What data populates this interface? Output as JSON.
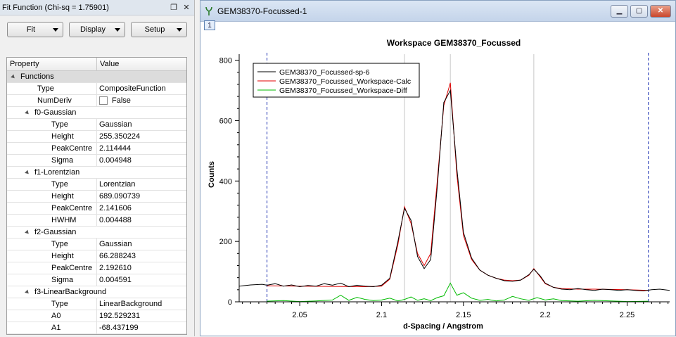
{
  "fit_panel": {
    "title": "Fit Function (Chi-sq = 1.75901)",
    "buttons": {
      "fit": "Fit",
      "display": "Display",
      "setup": "Setup"
    },
    "headers": {
      "property": "Property",
      "value": "Value"
    },
    "functions_label": "Functions",
    "rows": [
      {
        "indent": 1,
        "label": "Type",
        "value": "CompositeFunction"
      },
      {
        "indent": 1,
        "label": "NumDeriv",
        "value": "False",
        "checkbox": true
      },
      {
        "indent": 1,
        "label": "f0-Gaussian",
        "group": true
      },
      {
        "indent": 2,
        "label": "Type",
        "value": "Gaussian"
      },
      {
        "indent": 2,
        "label": "Height",
        "value": "255.350224"
      },
      {
        "indent": 2,
        "label": "PeakCentre",
        "value": "2.114444"
      },
      {
        "indent": 2,
        "label": "Sigma",
        "value": "0.004948"
      },
      {
        "indent": 1,
        "label": "f1-Lorentzian",
        "group": true
      },
      {
        "indent": 2,
        "label": "Type",
        "value": "Lorentzian"
      },
      {
        "indent": 2,
        "label": "Height",
        "value": "689.090739"
      },
      {
        "indent": 2,
        "label": "PeakCentre",
        "value": "2.141606"
      },
      {
        "indent": 2,
        "label": "HWHM",
        "value": "0.004488"
      },
      {
        "indent": 1,
        "label": "f2-Gaussian",
        "group": true
      },
      {
        "indent": 2,
        "label": "Type",
        "value": "Gaussian"
      },
      {
        "indent": 2,
        "label": "Height",
        "value": "66.288243"
      },
      {
        "indent": 2,
        "label": "PeakCentre",
        "value": "2.192610"
      },
      {
        "indent": 2,
        "label": "Sigma",
        "value": "0.004591"
      },
      {
        "indent": 1,
        "label": "f3-LinearBackground",
        "group": true
      },
      {
        "indent": 2,
        "label": "Type",
        "value": "LinearBackground"
      },
      {
        "indent": 2,
        "label": "A0",
        "value": "192.529231"
      },
      {
        "indent": 2,
        "label": "A1",
        "value": "-68.437199"
      }
    ]
  },
  "plot_window": {
    "title": "GEM38370-Focussed-1",
    "tab_number": "1"
  },
  "chart_data": {
    "type": "line",
    "title": "Workspace GEM38370_Focussed",
    "xlabel": "d-Spacing / Angstrom",
    "ylabel": "Counts",
    "xlim": [
      2.013,
      2.276
    ],
    "ylim": [
      0,
      820
    ],
    "xticks": [
      2.05,
      2.1,
      2.15,
      2.2,
      2.25
    ],
    "xtick_labels": [
      "2.05",
      "2.1",
      "2.15",
      "2.2",
      "2.25"
    ],
    "yticks": [
      0,
      200,
      400,
      600,
      800
    ],
    "ytick_labels": [
      "0",
      "200",
      "400",
      "600",
      "800"
    ],
    "vertical_lines": [
      2.114,
      2.142,
      2.193
    ],
    "range_markers": [
      2.03,
      2.263
    ],
    "legend_position": "top-left",
    "series": [
      {
        "name": "GEM38370_Focussed-sp-6",
        "color": "#000000",
        "x": [
          2.013,
          2.02,
          2.027,
          2.03,
          2.035,
          2.04,
          2.045,
          2.05,
          2.055,
          2.06,
          2.065,
          2.07,
          2.075,
          2.08,
          2.085,
          2.09,
          2.095,
          2.1,
          2.105,
          2.11,
          2.114,
          2.118,
          2.122,
          2.126,
          2.13,
          2.134,
          2.138,
          2.142,
          2.146,
          2.15,
          2.155,
          2.16,
          2.165,
          2.17,
          2.175,
          2.18,
          2.185,
          2.19,
          2.193,
          2.197,
          2.2,
          2.205,
          2.21,
          2.215,
          2.22,
          2.225,
          2.23,
          2.235,
          2.24,
          2.245,
          2.25,
          2.255,
          2.26,
          2.265,
          2.27,
          2.276
        ],
        "y": [
          52,
          56,
          58,
          55,
          60,
          52,
          56,
          50,
          54,
          52,
          60,
          55,
          62,
          50,
          55,
          52,
          50,
          55,
          78,
          200,
          310,
          270,
          150,
          110,
          140,
          380,
          660,
          700,
          440,
          230,
          145,
          105,
          88,
          78,
          70,
          68,
          72,
          90,
          108,
          85,
          62,
          48,
          42,
          40,
          44,
          40,
          38,
          42,
          40,
          38,
          40,
          38,
          36,
          40,
          42,
          38
        ]
      },
      {
        "name": "GEM38370_Focussed_Workspace-Calc",
        "color": "#e00000",
        "x": [
          2.03,
          2.05,
          2.07,
          2.09,
          2.1,
          2.105,
          2.11,
          2.114,
          2.118,
          2.122,
          2.126,
          2.13,
          2.134,
          2.138,
          2.142,
          2.146,
          2.15,
          2.155,
          2.16,
          2.165,
          2.17,
          2.175,
          2.18,
          2.185,
          2.19,
          2.193,
          2.197,
          2.2,
          2.205,
          2.21,
          2.22,
          2.23,
          2.24,
          2.25,
          2.263
        ],
        "y": [
          53,
          52,
          51,
          50,
          52,
          75,
          190,
          315,
          260,
          160,
          120,
          160,
          400,
          650,
          725,
          420,
          220,
          140,
          105,
          88,
          78,
          72,
          70,
          72,
          88,
          110,
          82,
          60,
          48,
          44,
          42,
          42,
          41,
          40,
          38
        ]
      },
      {
        "name": "GEM38370_Focussed_Workspace-Diff",
        "color": "#00bb00",
        "x": [
          2.03,
          2.04,
          2.05,
          2.06,
          2.07,
          2.075,
          2.08,
          2.085,
          2.09,
          2.095,
          2.1,
          2.105,
          2.11,
          2.114,
          2.118,
          2.122,
          2.126,
          2.13,
          2.134,
          2.138,
          2.142,
          2.146,
          2.15,
          2.155,
          2.16,
          2.165,
          2.17,
          2.175,
          2.18,
          2.185,
          2.19,
          2.195,
          2.2,
          2.205,
          2.21,
          2.22,
          2.23,
          2.24,
          2.25,
          2.263
        ],
        "y": [
          2,
          4,
          1,
          3,
          6,
          22,
          5,
          15,
          8,
          4,
          6,
          12,
          3,
          8,
          16,
          5,
          10,
          4,
          14,
          20,
          62,
          22,
          30,
          12,
          5,
          8,
          3,
          6,
          18,
          10,
          5,
          14,
          6,
          10,
          4,
          2,
          5,
          3,
          1,
          2
        ]
      }
    ]
  }
}
